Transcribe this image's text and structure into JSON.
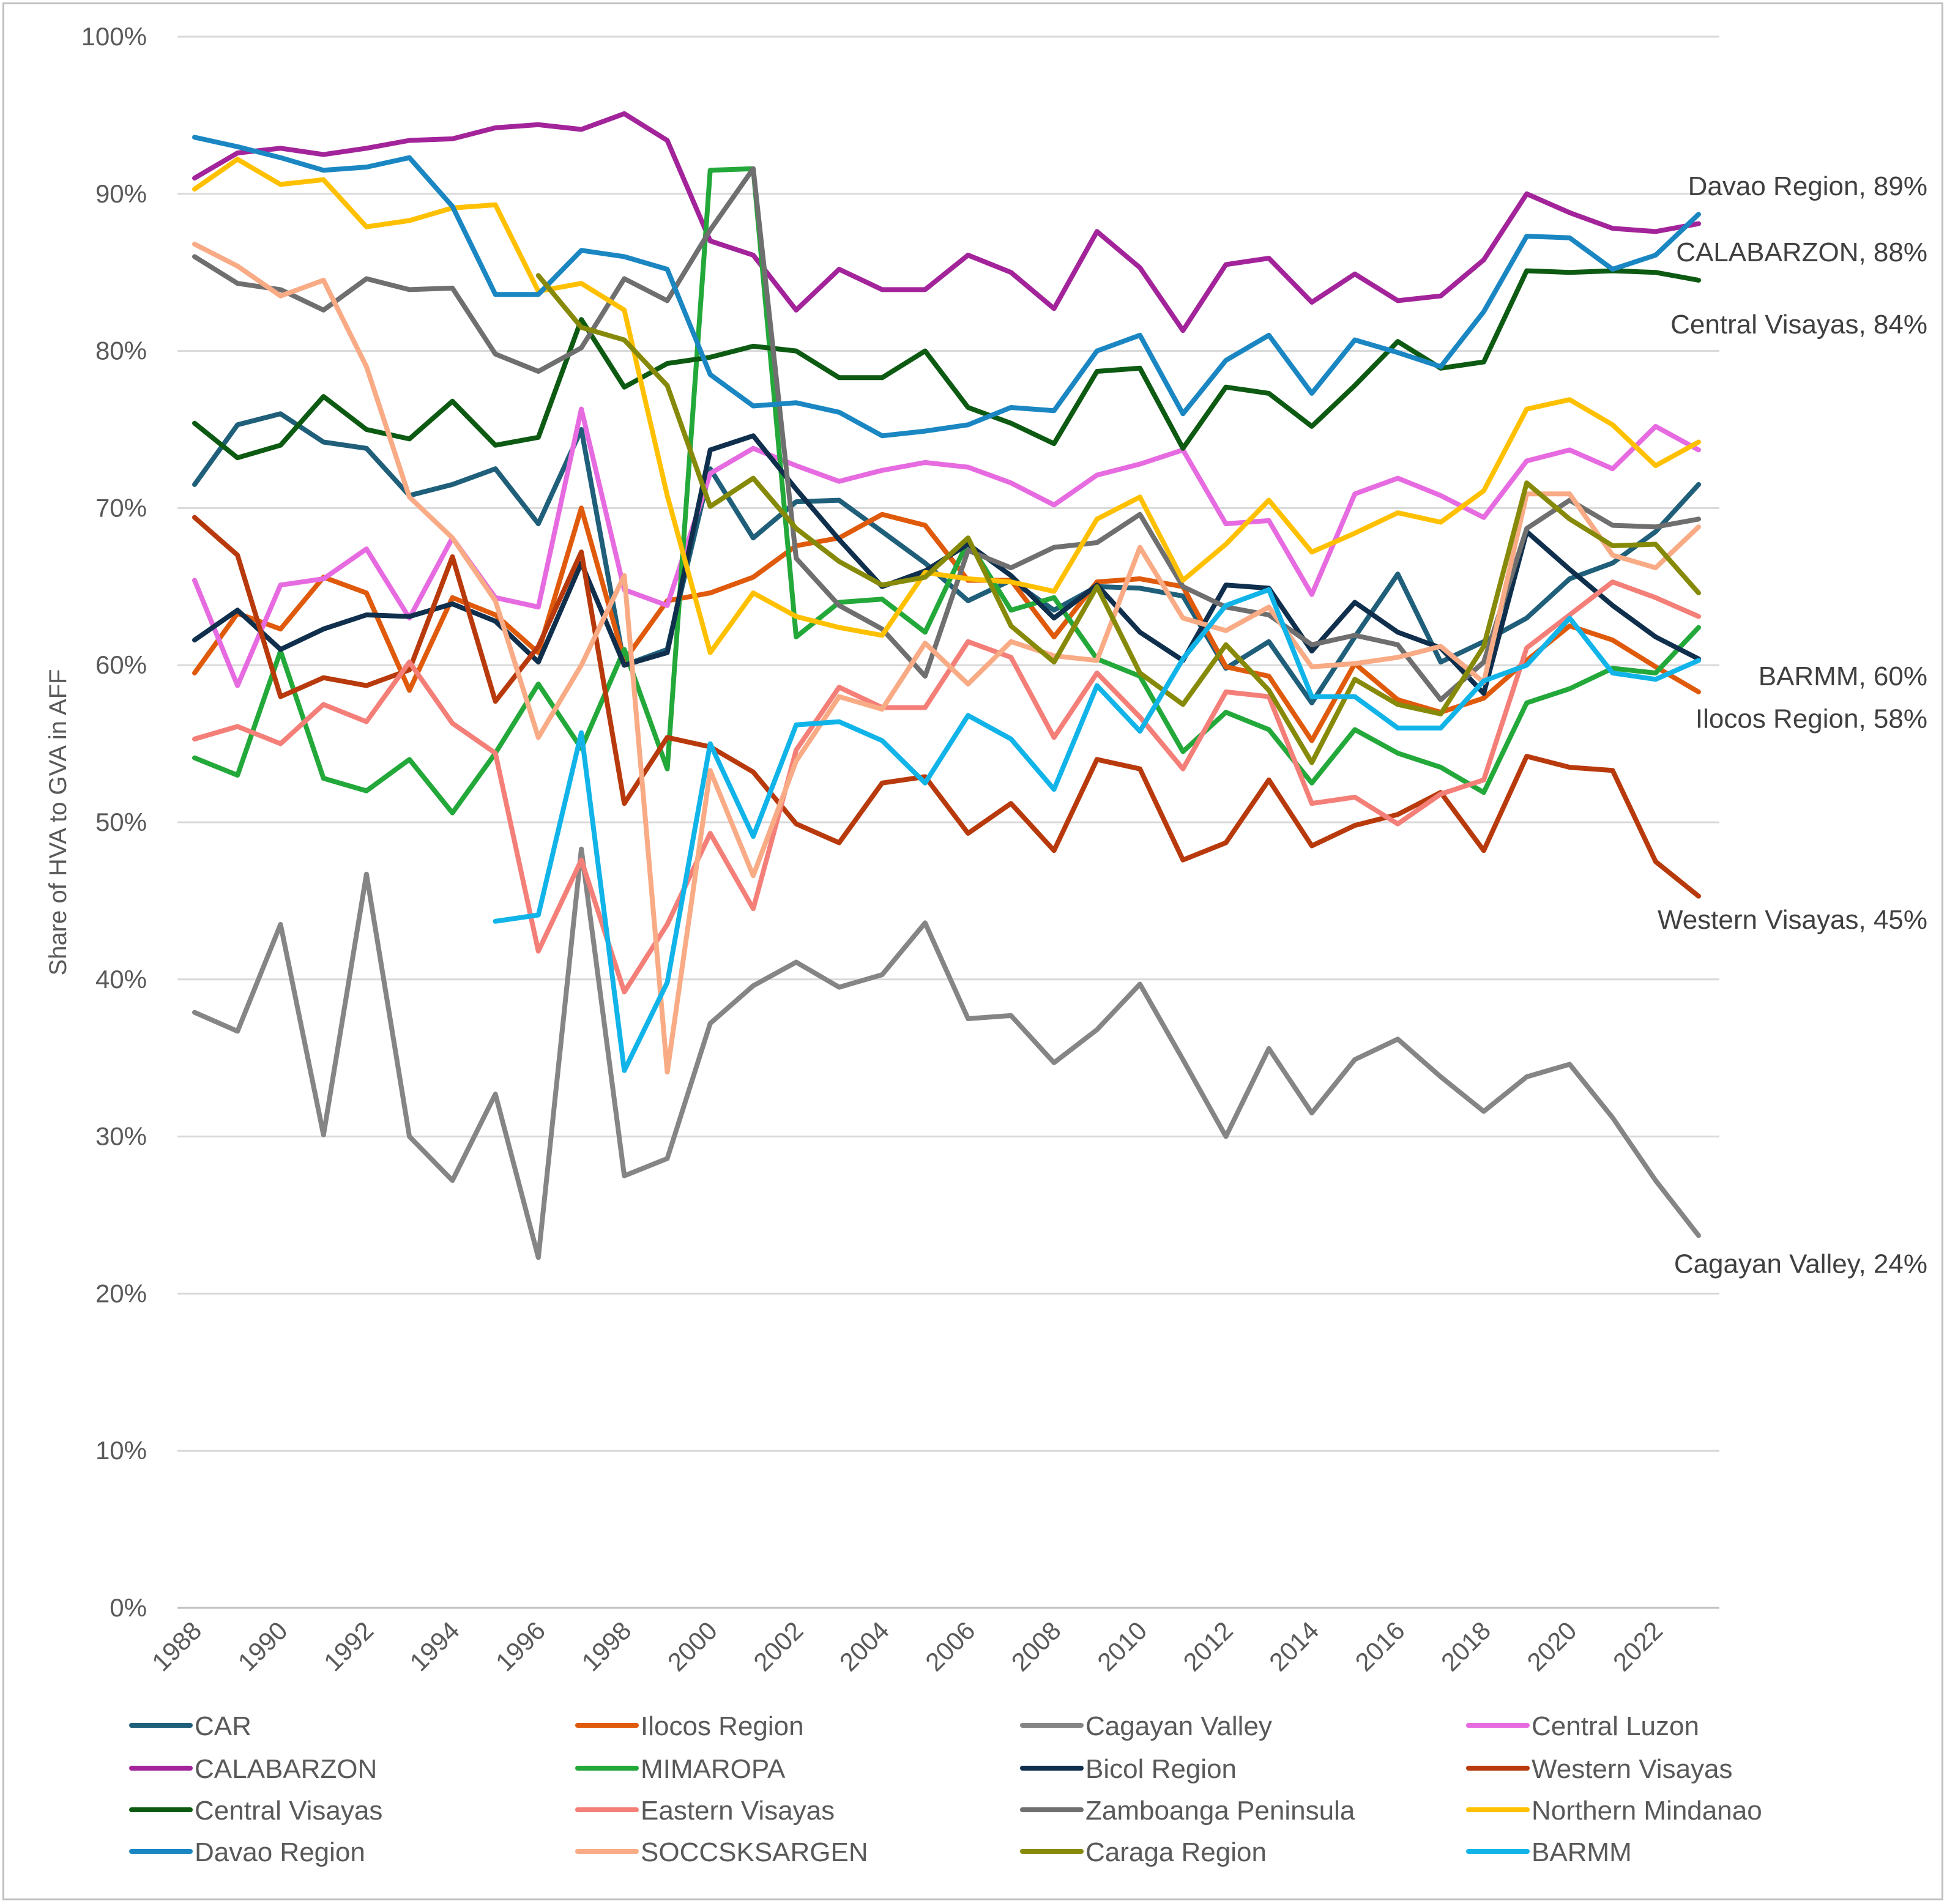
{
  "chart_data": {
    "type": "line",
    "title": "",
    "ylabel": "Share of HVA to GVA in AFF",
    "xlabel": "",
    "ylim": [
      0,
      100
    ],
    "y_ticks": [
      0,
      10,
      20,
      30,
      40,
      50,
      60,
      70,
      80,
      90,
      100
    ],
    "y_tick_labels": [
      "0%",
      "10%",
      "20%",
      "30%",
      "40%",
      "50%",
      "60%",
      "70%",
      "80%",
      "90%",
      "100%"
    ],
    "x_tick_labels": [
      "1988",
      "1990",
      "1992",
      "1994",
      "1996",
      "1998",
      "2000",
      "2002",
      "2004",
      "2006",
      "2008",
      "2010",
      "2012",
      "2014",
      "2016",
      "2018",
      "2020",
      "2022"
    ],
    "x_start": 1988,
    "x_end": 2023,
    "grid": true,
    "legend_position": "bottom",
    "series": [
      {
        "name": "CAR",
        "color": "#1f5f7a",
        "start": 1988,
        "values": [
          71.5,
          75.3,
          76,
          74.2,
          73.8,
          70.8,
          71.5,
          72.5,
          69,
          75,
          60,
          61,
          72.5,
          68.1,
          70.4,
          70.5,
          68.5,
          66.5,
          64.1,
          65.4,
          63.5,
          65,
          64.9,
          64.4,
          59.8,
          61.5,
          57.6,
          61.8,
          65.8,
          60.2,
          61.5,
          63,
          65.5,
          66.5,
          68.5,
          71.5
        ]
      },
      {
        "name": "Ilocos Region",
        "color": "#e05a0c",
        "start": 1988,
        "values": [
          59.5,
          63.3,
          62.3,
          65.6,
          64.6,
          58.4,
          64.3,
          63.2,
          60.8,
          70,
          60.3,
          64.1,
          64.6,
          65.6,
          67.6,
          68.1,
          69.6,
          68.9,
          65.4,
          65.4,
          61.8,
          65.3,
          65.5,
          65,
          59.9,
          59.3,
          55.2,
          60.1,
          57.8,
          57,
          57.9,
          60.3,
          62.5,
          61.6,
          59.9,
          58.3
        ]
      },
      {
        "name": "Cagayan Valley",
        "color": "#858585",
        "start": 1988,
        "values": [
          37.9,
          36.7,
          43.5,
          30.1,
          46.7,
          30,
          27.2,
          32.7,
          22.3,
          48.3,
          27.5,
          28.6,
          37.2,
          39.6,
          41.1,
          39.5,
          40.3,
          43.6,
          37.5,
          37.7,
          34.7,
          36.8,
          39.7,
          34.9,
          30,
          35.6,
          31.5,
          34.9,
          36.2,
          33.8,
          31.6,
          33.8,
          34.6,
          31.2,
          27.2,
          23.7
        ]
      },
      {
        "name": "Central Luzon",
        "color": "#e76be0",
        "start": 1988,
        "values": [
          65.4,
          58.7,
          65.1,
          65.5,
          67.4,
          63,
          68.1,
          64.3,
          63.7,
          76.3,
          64.8,
          63.8,
          72.2,
          73.8,
          72.7,
          71.7,
          72.4,
          72.9,
          72.6,
          71.6,
          70.2,
          72.1,
          72.8,
          73.7,
          69,
          69.2,
          64.5,
          70.9,
          71.9,
          70.8,
          69.4,
          73,
          73.7,
          72.5,
          75.2,
          73.7
        ]
      },
      {
        "name": "CALABARZON",
        "color": "#a3249a",
        "start": 1988,
        "values": [
          91,
          92.6,
          92.9,
          92.5,
          92.9,
          93.4,
          93.5,
          94.2,
          94.4,
          94.1,
          95.1,
          93.4,
          87,
          86.1,
          82.6,
          85.2,
          83.9,
          83.9,
          86.1,
          85,
          82.7,
          87.6,
          85.3,
          81.3,
          85.5,
          85.9,
          83.1,
          84.9,
          83.2,
          83.5,
          85.8,
          90,
          88.8,
          87.8,
          87.6,
          88.1
        ]
      },
      {
        "name": "MIMAROPA",
        "color": "#23a83a",
        "start": 1988,
        "values": [
          54.1,
          53,
          60.9,
          52.8,
          52,
          54,
          50.6,
          54.4,
          58.8,
          54.7,
          61,
          53.4,
          91.5,
          91.6,
          61.8,
          64,
          64.2,
          62.1,
          67.9,
          63.5,
          64.3,
          60.4,
          59.3,
          54.5,
          57,
          55.9,
          52.5,
          55.9,
          54.4,
          53.5,
          51.9,
          57.6,
          58.5,
          59.8,
          59.5,
          62.4
        ]
      },
      {
        "name": "Bicol Region",
        "color": "#0f2f4d",
        "start": 1988,
        "values": [
          61.6,
          63.5,
          61,
          62.3,
          63.2,
          63.1,
          63.9,
          62.8,
          60.2,
          66.5,
          60,
          60.8,
          73.7,
          74.6,
          71.2,
          68,
          65,
          66,
          67.7,
          65.7,
          63,
          65.1,
          62.1,
          60.3,
          65.1,
          64.9,
          60.9,
          64,
          62.1,
          61.1,
          58.2,
          68.5,
          66.1,
          63.8,
          61.8,
          60.4
        ]
      },
      {
        "name": "Western Visayas",
        "color": "#b83a0c",
        "start": 1988,
        "values": [
          69.4,
          67,
          58,
          59.2,
          58.7,
          59.7,
          66.9,
          57.7,
          61.2,
          67.2,
          51.2,
          55.4,
          54.8,
          53.2,
          49.9,
          48.7,
          52.5,
          52.9,
          49.3,
          51.2,
          48.2,
          54,
          53.4,
          47.6,
          48.7,
          52.7,
          48.5,
          49.8,
          50.5,
          51.9,
          48.2,
          54.2,
          53.5,
          53.3,
          47.5,
          45.3
        ]
      },
      {
        "name": "Central Visayas",
        "color": "#0d5a12",
        "start": 1988,
        "values": [
          75.4,
          73.2,
          74,
          77.1,
          75,
          74.4,
          76.8,
          74,
          74.5,
          82,
          77.7,
          79.2,
          79.6,
          80.3,
          80,
          78.3,
          78.3,
          80,
          76.4,
          75.4,
          74.1,
          78.7,
          78.9,
          73.8,
          77.7,
          77.3,
          75.2,
          77.8,
          80.6,
          78.9,
          79.3,
          85.1,
          85,
          85.1,
          85,
          84.5
        ]
      },
      {
        "name": "Eastern Visayas",
        "color": "#f47f78",
        "start": 1988,
        "values": [
          55.3,
          56.1,
          55,
          57.5,
          56.4,
          60.2,
          56.3,
          54.4,
          41.8,
          47.6,
          39.2,
          43.5,
          49.3,
          44.5,
          54.6,
          58.6,
          57.3,
          57.3,
          61.5,
          60.5,
          55.4,
          59.5,
          56.7,
          53.4,
          58.3,
          58,
          51.2,
          51.6,
          49.9,
          51.8,
          52.7,
          61.1,
          63.2,
          65.3,
          64.3,
          63.1
        ]
      },
      {
        "name": "Zamboanga Peninsula",
        "color": "#6f6f6f",
        "start": 1988,
        "values": [
          86,
          84.3,
          83.9,
          82.6,
          84.6,
          83.9,
          84,
          79.8,
          78.7,
          80.2,
          84.6,
          83.2,
          87.7,
          91.6,
          66.8,
          63.8,
          62.3,
          59.3,
          67.3,
          66.2,
          67.5,
          67.8,
          69.6,
          65,
          63.7,
          63.2,
          61.3,
          61.9,
          61.3,
          57.8,
          60.2,
          68.7,
          70.5,
          68.9,
          68.8,
          69.3
        ]
      },
      {
        "name": "Northern Mindanao",
        "color": "#ffc000",
        "start": 1988,
        "values": [
          90.3,
          92.2,
          90.6,
          90.9,
          87.9,
          88.3,
          89.1,
          89.3,
          83.8,
          84.3,
          82.6,
          70.8,
          60.8,
          64.6,
          63.1,
          62.4,
          61.9,
          65.9,
          65.5,
          65.3,
          64.7,
          69.3,
          70.7,
          65.4,
          67.7,
          70.5,
          67.2,
          68.4,
          69.7,
          69.1,
          71.1,
          76.3,
          76.9,
          75.3,
          72.7,
          74.2
        ]
      },
      {
        "name": "Davao Region",
        "color": "#1a86c2",
        "start": 1988,
        "values": [
          93.6,
          93,
          92.3,
          91.5,
          91.7,
          92.3,
          89.2,
          83.6,
          83.6,
          86.4,
          86,
          85.2,
          78.5,
          76.5,
          76.7,
          76.1,
          74.6,
          74.9,
          75.3,
          76.4,
          76.2,
          80,
          81,
          76,
          79.4,
          81,
          77.3,
          80.7,
          79.9,
          79,
          82.5,
          87.3,
          87.2,
          85.2,
          86.1,
          88.7
        ]
      },
      {
        "name": "SOCCSKSARGEN",
        "color": "#f8ab85",
        "start": 1988,
        "values": [
          86.8,
          85.4,
          83.5,
          84.5,
          79,
          70.7,
          68.1,
          64.1,
          55.4,
          60,
          65.7,
          34.1,
          53.3,
          46.6,
          53.9,
          58,
          57.2,
          61.4,
          58.8,
          61.5,
          60.6,
          60.3,
          67.5,
          63,
          62.2,
          63.7,
          59.9,
          60.1,
          60.5,
          61.2,
          58.9,
          70.9,
          70.9,
          67,
          66.2,
          68.8
        ]
      },
      {
        "name": "Caraga Region",
        "color": "#868a08",
        "start": 1996,
        "values": [
          84.8,
          81.5,
          80.7,
          77.8,
          70.1,
          71.9,
          68.7,
          66.6,
          65.1,
          65.6,
          68.1,
          62.5,
          60.2,
          65,
          59.5,
          57.5,
          61.3,
          58.4,
          53.8,
          59.1,
          57.5,
          56.9,
          61.2,
          71.6,
          69.3,
          67.6,
          67.7,
          64.6
        ]
      },
      {
        "name": "BARMM",
        "color": "#11b4e8",
        "start": 1995,
        "values": [
          43.7,
          44.1,
          55.7,
          34.2,
          39.8,
          55,
          49.1,
          56.2,
          56.4,
          55.2,
          52.5,
          56.8,
          55.3,
          52.1,
          58.7,
          55.8,
          60.4,
          63.8,
          64.8,
          58,
          58,
          56,
          56,
          59,
          60,
          63,
          59.5,
          59.1,
          60.3
        ]
      }
    ],
    "end_labels": [
      {
        "series": "Davao Region",
        "text": "Davao Region, 89%",
        "anchor_value": 90.5
      },
      {
        "series": "CALABARZON",
        "text": "CALABARZON, 88%",
        "anchor_value": 86.3
      },
      {
        "series": "Central Visayas",
        "text": "Central Visayas, 84%",
        "anchor_value": 81.7
      },
      {
        "series": "BARMM",
        "text": "BARMM, 60%",
        "anchor_value": 59.3
      },
      {
        "series": "Ilocos Region",
        "text": "Ilocos Region, 58%",
        "anchor_value": 56.6
      },
      {
        "series": "Western Visayas",
        "text": "Western Visayas, 45%",
        "anchor_value": 43.8
      },
      {
        "series": "Cagayan Valley",
        "text": "Cagayan Valley, 24%",
        "anchor_value": 21.9
      }
    ]
  }
}
